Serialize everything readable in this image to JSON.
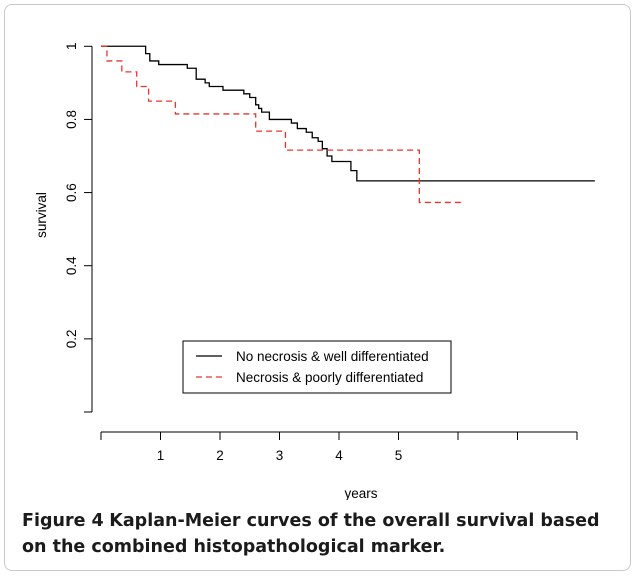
{
  "chart_data": {
    "type": "line",
    "title": "",
    "xlabel": "years",
    "ylabel": "survival",
    "xlim": [
      0,
      8.6
    ],
    "ylim": [
      0,
      1.05
    ],
    "x_ticks": [
      0,
      1,
      2,
      3,
      4,
      5,
      6,
      7,
      8
    ],
    "x_tick_labels": [
      "",
      "1",
      "2",
      "3",
      "4",
      "5",
      "",
      "",
      ""
    ],
    "y_ticks": [
      0,
      0.2,
      0.4,
      0.6,
      0.8,
      1.0
    ],
    "y_tick_labels": [
      "",
      "0.2",
      "0.4",
      "0.6",
      "0.8",
      "1"
    ],
    "legend_position": "bottom-center",
    "series": [
      {
        "name": "No necrosis & well differentiated",
        "color": "#000000",
        "dash": "solid",
        "steps": [
          [
            0,
            1.0
          ],
          [
            0.35,
            1.0
          ],
          [
            0.75,
            0.98
          ],
          [
            0.82,
            0.96
          ],
          [
            0.97,
            0.95
          ],
          [
            1.45,
            0.94
          ],
          [
            1.6,
            0.91
          ],
          [
            1.75,
            0.9
          ],
          [
            1.82,
            0.89
          ],
          [
            2.05,
            0.88
          ],
          [
            2.4,
            0.87
          ],
          [
            2.5,
            0.86
          ],
          [
            2.6,
            0.84
          ],
          [
            2.65,
            0.83
          ],
          [
            2.7,
            0.82
          ],
          [
            2.83,
            0.8
          ],
          [
            3.2,
            0.79
          ],
          [
            3.3,
            0.775
          ],
          [
            3.45,
            0.765
          ],
          [
            3.55,
            0.75
          ],
          [
            3.65,
            0.74
          ],
          [
            3.72,
            0.72
          ],
          [
            3.8,
            0.7
          ],
          [
            3.88,
            0.685
          ],
          [
            4.2,
            0.66
          ],
          [
            4.3,
            0.632
          ],
          [
            8.3,
            0.632
          ]
        ]
      },
      {
        "name": "Necrosis & poorly differentiated",
        "color": "#e8342a",
        "dash": "dashed",
        "steps": [
          [
            0,
            1.0
          ],
          [
            0.1,
            0.96
          ],
          [
            0.35,
            0.93
          ],
          [
            0.6,
            0.89
          ],
          [
            0.8,
            0.85
          ],
          [
            1.25,
            0.815
          ],
          [
            2.6,
            0.768
          ],
          [
            3.1,
            0.716
          ],
          [
            5.35,
            0.573
          ],
          [
            6.05,
            0.573
          ]
        ]
      }
    ]
  },
  "caption": {
    "label": "Figure 4",
    "text": "Kaplan-Meier curves of the overall survival based on the combined histopathological marker."
  }
}
